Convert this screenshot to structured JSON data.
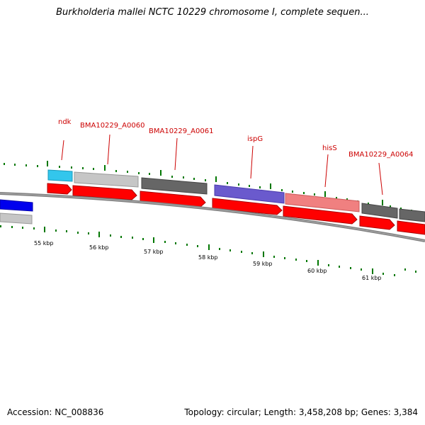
{
  "title": "Burkholderia mallei NCTC 10229 chromosome I, complete sequen...",
  "footer": {
    "accession": "Accession: NC_008836",
    "stats": "Topology: circular; Length: 3,458,208 bp; Genes: 3,384"
  },
  "colors": {
    "backbone": "#808080",
    "cds_red": "#ff0000",
    "label_red": "#cc0000",
    "tick_green": "#007700",
    "cyan": "#33c6ec",
    "light_gray": "#c6c6c6",
    "dark_gray": "#666666",
    "purple": "#6a5acd",
    "pink": "#f08080",
    "blue": "#0000ee"
  },
  "kbp_labels": [
    "55 kbp",
    "56 kbp",
    "57 kbp",
    "58 kbp",
    "59 kbp",
    "60 kbp",
    "61 kbp"
  ],
  "gene_labels": [
    "ndk",
    "BMA10229_A0060",
    "BMA10229_A0061",
    "ispG",
    "hisS",
    "BMA10229_A0064"
  ]
}
